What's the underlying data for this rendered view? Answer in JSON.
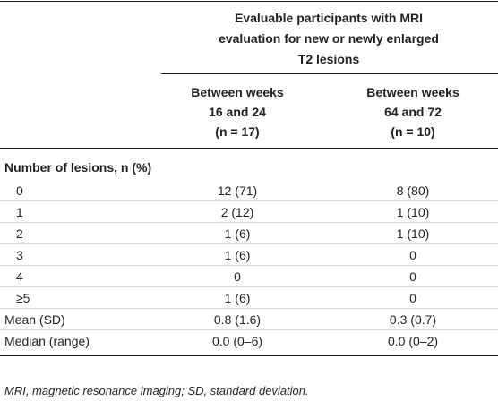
{
  "table": {
    "header": {
      "group": [
        "Evaluable participants with MRI",
        "evaluation for new or newly enlarged",
        "T2 lesions"
      ],
      "columns": [
        [
          "Between weeks",
          "16 and 24",
          "(n = 17)"
        ],
        [
          "Between weeks",
          "64 and 72",
          "(n = 10)"
        ]
      ]
    },
    "section": "Number of lesions, n (%)",
    "rows": [
      [
        "0",
        "12 (71)",
        "8 (80)"
      ],
      [
        "1",
        "2 (12)",
        "1 (10)"
      ],
      [
        "2",
        "1 (6)",
        "1 (10)"
      ],
      [
        "3",
        "1 (6)",
        "0"
      ],
      [
        "4",
        "0",
        "0"
      ],
      [
        "≥5",
        "1 (6)",
        "0"
      ],
      [
        "Mean (SD)",
        "0.8 (1.6)",
        "0.3 (0.7)"
      ],
      [
        "Median (range)",
        "0.0 (0–6)",
        "0.0 (0–2)"
      ]
    ],
    "footnote": "MRI, magnetic resonance imaging; SD, standard deviation."
  }
}
